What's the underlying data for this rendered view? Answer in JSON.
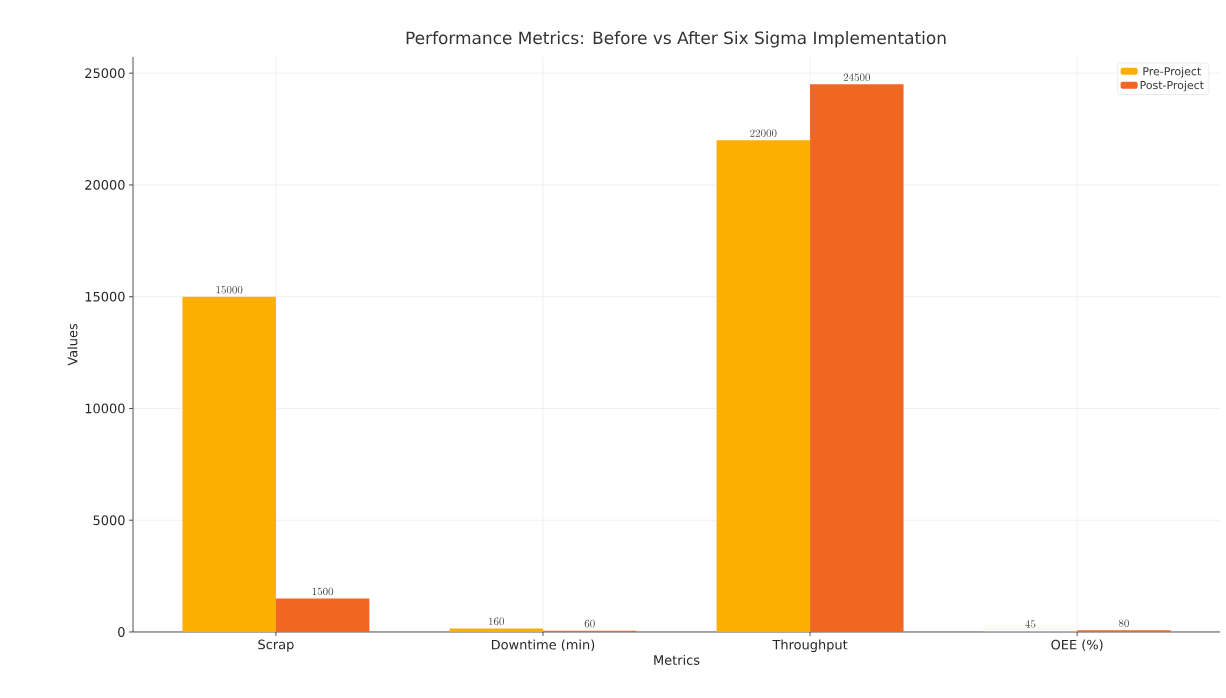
{
  "chart_data": {
    "type": "bar",
    "title": "Performance Metrics: Before vs After Six Sigma Implementation",
    "xlabel": "Metrics",
    "ylabel": "Values",
    "categories": [
      "Scrap",
      "Downtime (min)",
      "Throughput",
      "OEE (%)"
    ],
    "series": [
      {
        "name": "Pre-Project",
        "color": "#fcae03",
        "values": [
          15000,
          160,
          22000,
          45
        ]
      },
      {
        "name": "Post-Project",
        "color": "#f26624",
        "values": [
          1500,
          60,
          24500,
          80
        ]
      }
    ],
    "ylim": [
      0,
      25725
    ],
    "yticks": [
      0,
      5000,
      10000,
      15000,
      20000,
      25000
    ],
    "grid": true,
    "legend": "top right",
    "data_labels": true
  }
}
